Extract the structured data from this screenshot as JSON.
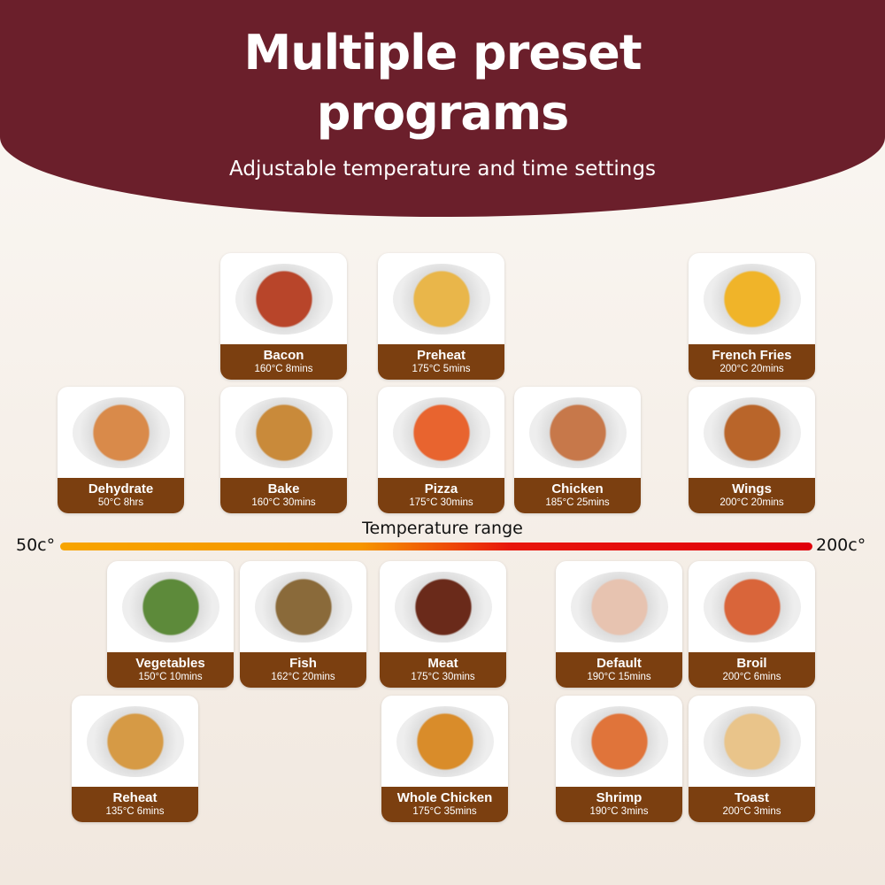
{
  "header": {
    "title_line1": "Multiple preset",
    "title_line2": "programs",
    "subtitle": "Adjustable temperature and time settings"
  },
  "colors": {
    "header": "#6b1f2b",
    "label_band": "#7b3f10",
    "range_start": "#f7a400",
    "range_end": "#e0000a"
  },
  "range": {
    "label": "Temperature range",
    "min_label": "50c°",
    "max_label": "200c°"
  },
  "programs": [
    {
      "name": "Bacon",
      "setting": "160°C 8mins"
    },
    {
      "name": "Preheat",
      "setting": "175°C 5mins"
    },
    {
      "name": "French Fries",
      "setting": "200°C 20mins"
    },
    {
      "name": "Dehydrate",
      "setting": "50°C 8hrs"
    },
    {
      "name": "Bake",
      "setting": "160°C 30mins"
    },
    {
      "name": "Pizza",
      "setting": "175°C 30mins"
    },
    {
      "name": "Chicken",
      "setting": "185°C 25mins"
    },
    {
      "name": "Wings",
      "setting": "200°C 20mins"
    },
    {
      "name": "Vegetables",
      "setting": "150°C 10mins"
    },
    {
      "name": "Fish",
      "setting": "162°C 20mins"
    },
    {
      "name": "Meat",
      "setting": "175°C 30mins"
    },
    {
      "name": "Default",
      "setting": "190°C 15mins"
    },
    {
      "name": "Broil",
      "setting": "200°C 6mins"
    },
    {
      "name": "Reheat",
      "setting": "135°C 6mins"
    },
    {
      "name": "Whole Chicken",
      "setting": "175°C 35mins"
    },
    {
      "name": "Shrimp",
      "setting": "190°C 3mins"
    },
    {
      "name": "Toast",
      "setting": "200°C 3mins"
    }
  ]
}
